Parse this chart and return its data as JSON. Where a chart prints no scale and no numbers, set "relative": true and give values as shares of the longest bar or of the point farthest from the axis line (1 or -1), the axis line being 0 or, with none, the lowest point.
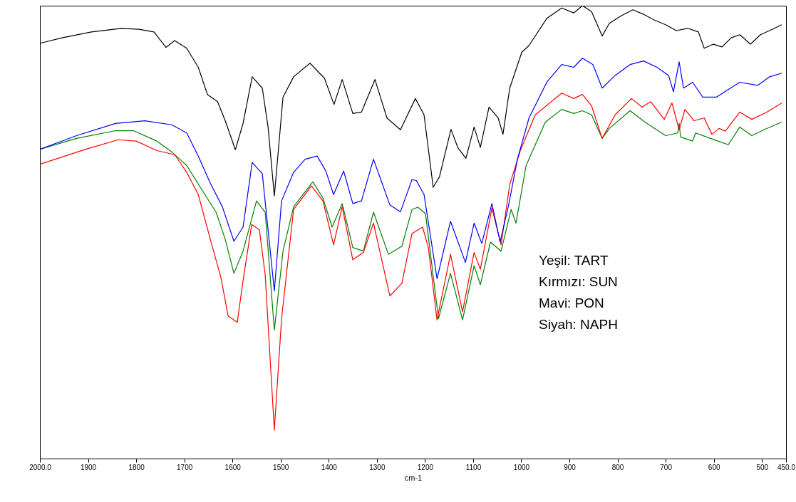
{
  "chart_data": {
    "type": "line",
    "relative": true,
    "xlabel": "cm-1",
    "xlim": [
      2000,
      450
    ],
    "xticks": [
      {
        "value": 2000,
        "label": "2000.0"
      },
      1900,
      1800,
      1700,
      1600,
      1500,
      1400,
      1300,
      1200,
      1100,
      1000,
      900,
      800,
      700,
      600,
      500,
      {
        "value": 450,
        "label": "450.0"
      }
    ],
    "grid": false,
    "line_style": "solid",
    "annotations": [
      "Yeşil: TART",
      "Kırmızı: SUN",
      "Mavi: PON",
      "Siyah: NAPH"
    ],
    "series": [
      {
        "color": "#008000",
        "x": [
          2000,
          1924,
          1843,
          1806,
          1757,
          1726,
          1695,
          1665,
          1634,
          1615,
          1597,
          1578,
          1550,
          1532,
          1513,
          1495,
          1473,
          1433,
          1412,
          1393,
          1372,
          1350,
          1328,
          1307,
          1276,
          1248,
          1227,
          1215,
          1199,
          1172,
          1147,
          1122,
          1098,
          1085,
          1064,
          1042,
          1021,
          1011,
          990,
          950,
          916,
          891,
          873,
          854,
          832,
          817,
          774,
          743,
          700,
          675,
          672,
          669,
          644,
          638,
          607,
          570,
          546,
          521,
          496,
          459
        ],
        "values": [
          0.683,
          0.707,
          0.724,
          0.724,
          0.701,
          0.677,
          0.647,
          0.596,
          0.544,
          0.484,
          0.409,
          0.458,
          0.569,
          0.544,
          0.284,
          0.458,
          0.556,
          0.611,
          0.575,
          0.511,
          0.563,
          0.466,
          0.458,
          0.544,
          0.451,
          0.469,
          0.55,
          0.555,
          0.541,
          0.309,
          0.409,
          0.306,
          0.426,
          0.384,
          0.478,
          0.458,
          0.55,
          0.52,
          0.647,
          0.743,
          0.771,
          0.762,
          0.768,
          0.759,
          0.707,
          0.729,
          0.768,
          0.743,
          0.713,
          0.719,
          0.74,
          0.71,
          0.701,
          0.719,
          0.707,
          0.693,
          0.732,
          0.713,
          0.726,
          0.743
        ]
      },
      {
        "color": "#ff0000",
        "x": [
          2000,
          1905,
          1837,
          1800,
          1757,
          1720,
          1695,
          1671,
          1646,
          1624,
          1609,
          1590,
          1578,
          1560,
          1544,
          1532,
          1513,
          1498,
          1473,
          1436,
          1412,
          1390,
          1372,
          1350,
          1328,
          1307,
          1273,
          1248,
          1227,
          1205,
          1193,
          1175,
          1147,
          1122,
          1098,
          1085,
          1061,
          1042,
          1024,
          1002,
          971,
          916,
          891,
          873,
          854,
          832,
          805,
          771,
          749,
          731,
          703,
          687,
          672,
          660,
          641,
          620,
          604,
          589,
          576,
          546,
          521,
          490,
          459
        ],
        "values": [
          0.65,
          0.683,
          0.704,
          0.701,
          0.68,
          0.671,
          0.632,
          0.583,
          0.484,
          0.4,
          0.315,
          0.301,
          0.393,
          0.517,
          0.505,
          0.406,
          0.063,
          0.309,
          0.55,
          0.602,
          0.569,
          0.472,
          0.556,
          0.439,
          0.455,
          0.52,
          0.359,
          0.387,
          0.497,
          0.511,
          0.466,
          0.306,
          0.451,
          0.324,
          0.455,
          0.418,
          0.553,
          0.472,
          0.605,
          0.68,
          0.759,
          0.807,
          0.795,
          0.804,
          0.779,
          0.707,
          0.759,
          0.795,
          0.776,
          0.788,
          0.749,
          0.785,
          0.726,
          0.771,
          0.746,
          0.752,
          0.716,
          0.729,
          0.723,
          0.765,
          0.749,
          0.765,
          0.785
        ]
      },
      {
        "color": "#0000ff",
        "x": [
          2000,
          1924,
          1843,
          1782,
          1726,
          1695,
          1671,
          1646,
          1621,
          1597,
          1578,
          1559,
          1538,
          1526,
          1513,
          1498,
          1473,
          1449,
          1424,
          1406,
          1390,
          1369,
          1350,
          1332,
          1307,
          1273,
          1251,
          1227,
          1218,
          1202,
          1175,
          1147,
          1116,
          1098,
          1082,
          1061,
          1044,
          1027,
          1008,
          984,
          947,
          916,
          891,
          873,
          851,
          832,
          805,
          774,
          746,
          718,
          694,
          684,
          672,
          663,
          644,
          623,
          595,
          570,
          546,
          509,
          484,
          459
        ],
        "values": [
          0.683,
          0.713,
          0.74,
          0.746,
          0.737,
          0.719,
          0.668,
          0.608,
          0.556,
          0.48,
          0.511,
          0.654,
          0.629,
          0.505,
          0.37,
          0.569,
          0.632,
          0.661,
          0.668,
          0.635,
          0.583,
          0.635,
          0.563,
          0.569,
          0.661,
          0.56,
          0.545,
          0.616,
          0.614,
          0.583,
          0.397,
          0.524,
          0.433,
          0.52,
          0.475,
          0.563,
          0.478,
          0.556,
          0.661,
          0.752,
          0.831,
          0.87,
          0.864,
          0.884,
          0.87,
          0.818,
          0.846,
          0.87,
          0.878,
          0.864,
          0.846,
          0.81,
          0.876,
          0.818,
          0.831,
          0.798,
          0.798,
          0.815,
          0.831,
          0.824,
          0.843,
          0.851
        ]
      },
      {
        "color": "#000000",
        "x": [
          2000,
          1954,
          1893,
          1831,
          1794,
          1763,
          1738,
          1720,
          1695,
          1671,
          1652,
          1631,
          1615,
          1594,
          1578,
          1559,
          1538,
          1526,
          1513,
          1495,
          1473,
          1439,
          1409,
          1389,
          1372,
          1350,
          1332,
          1304,
          1279,
          1251,
          1220,
          1202,
          1183,
          1170,
          1146,
          1132,
          1115,
          1098,
          1085,
          1067,
          1048,
          1038,
          1024,
          999,
          984,
          947,
          916,
          891,
          873,
          854,
          832,
          817,
          792,
          768,
          746,
          725,
          700,
          678,
          654,
          632,
          620,
          601,
          583,
          564,
          546,
          524,
          503,
          478,
          459
        ],
        "values": [
          0.917,
          0.929,
          0.942,
          0.95,
          0.948,
          0.942,
          0.908,
          0.923,
          0.906,
          0.864,
          0.804,
          0.788,
          0.746,
          0.682,
          0.74,
          0.843,
          0.818,
          0.732,
          0.58,
          0.798,
          0.843,
          0.873,
          0.84,
          0.782,
          0.837,
          0.762,
          0.765,
          0.837,
          0.752,
          0.726,
          0.795,
          0.759,
          0.599,
          0.622,
          0.727,
          0.687,
          0.663,
          0.732,
          0.687,
          0.776,
          0.752,
          0.716,
          0.818,
          0.897,
          0.912,
          0.972,
          0.995,
          0.984,
          1.0,
          0.987,
          0.933,
          0.961,
          0.978,
          0.991,
          0.981,
          0.969,
          0.958,
          0.945,
          0.95,
          0.942,
          0.906,
          0.915,
          0.909,
          0.929,
          0.936,
          0.915,
          0.936,
          0.948,
          0.958
        ]
      }
    ]
  }
}
